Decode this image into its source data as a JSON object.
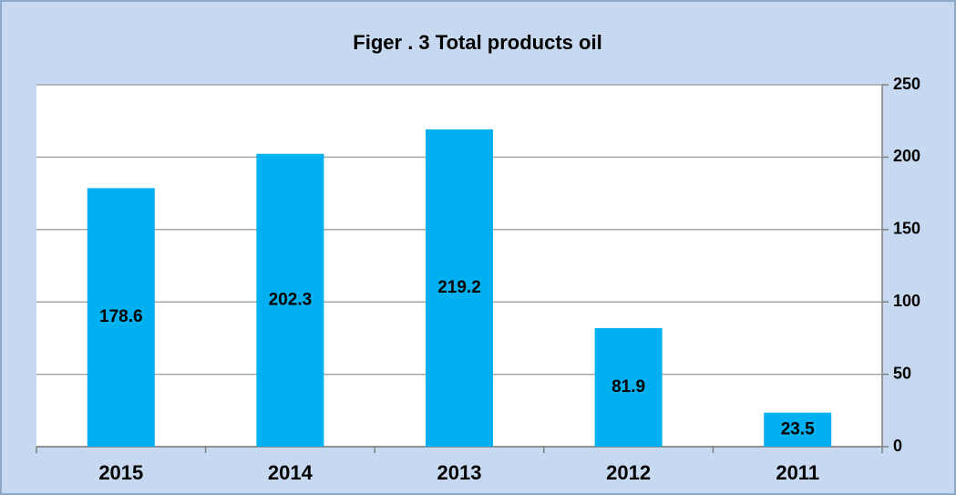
{
  "chart_data": {
    "type": "bar",
    "title": "Figer . 3 Total products oil",
    "categories": [
      "2015",
      "2014",
      "2013",
      "2012",
      "2011"
    ],
    "values": [
      178.6,
      202.3,
      219.2,
      81.9,
      23.5
    ],
    "color": "#00b0f0",
    "ylim": [
      0,
      250
    ],
    "yticks": [
      0,
      50,
      100,
      150,
      200,
      250
    ],
    "grid": true,
    "y_axis_side": "right"
  }
}
